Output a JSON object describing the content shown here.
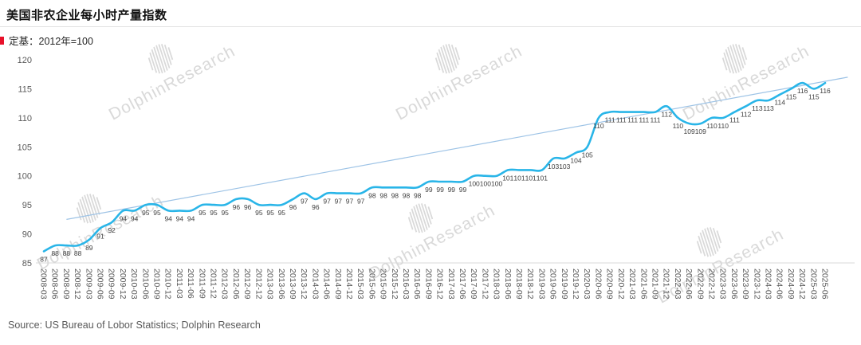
{
  "header": {
    "title": "美国非农企业每小时产量指数",
    "subtitle": "定基：2012年=100"
  },
  "footer": {
    "source": "Source: US Bureau of Lobor Statistics; Dolphin Research"
  },
  "watermark": {
    "text": "DolphinResearch",
    "icon": "dolphin-hatched-globe-icon"
  },
  "colors": {
    "series_line": "#29b5e8",
    "trend_line": "#9dc3e6",
    "subtitle_marker": "#e8112a",
    "axis_text": "#595959",
    "data_label_text": "#404040",
    "axis_line": "#d9d9d9",
    "watermark": "#d9d9d9"
  },
  "chart_data": {
    "type": "line",
    "title": "美国非农企业每小时产量指数",
    "base_note": "2012年=100",
    "x": [
      "2008-03",
      "2008-06",
      "2008-09",
      "2008-12",
      "2009-03",
      "2009-06",
      "2009-09",
      "2009-12",
      "2010-03",
      "2010-06",
      "2010-09",
      "2010-12",
      "2011-03",
      "2011-06",
      "2011-09",
      "2011-12",
      "2012-03",
      "2012-06",
      "2012-09",
      "2012-12",
      "2013-03",
      "2013-06",
      "2013-09",
      "2013-12",
      "2014-03",
      "2014-06",
      "2014-09",
      "2014-12",
      "2015-03",
      "2015-06",
      "2015-09",
      "2015-12",
      "2016-03",
      "2016-06",
      "2016-09",
      "2016-12",
      "2017-03",
      "2017-06",
      "2017-09",
      "2017-12",
      "2018-03",
      "2018-06",
      "2018-09",
      "2018-12",
      "2019-03",
      "2019-06",
      "2019-09",
      "2019-12",
      "2020-03",
      "2020-06",
      "2020-09",
      "2020-12",
      "2021-03",
      "2021-06",
      "2021-09",
      "2021-12",
      "2022-03",
      "2022-06",
      "2022-09",
      "2022-12",
      "2023-03",
      "2023-06",
      "2023-09",
      "2023-12",
      "2024-03",
      "2024-06",
      "2024-09",
      "2024-12",
      "2025-03",
      "2025-06"
    ],
    "series": [
      {
        "name": "美国非农企业每小时产量指数",
        "values": [
          87,
          88,
          88,
          88,
          89,
          91,
          92,
          94,
          94,
          95,
          95,
          94,
          94,
          94,
          95,
          95,
          95,
          96,
          96,
          95,
          95,
          95,
          96,
          97,
          96,
          97,
          97,
          97,
          97,
          98,
          98,
          98,
          98,
          98,
          99,
          99,
          99,
          99,
          100,
          100,
          100,
          101,
          101,
          101,
          101,
          103,
          103,
          104,
          105,
          110,
          111,
          111,
          111,
          111,
          111,
          112,
          110,
          109,
          109,
          110,
          110,
          111,
          112,
          113,
          113,
          114,
          115,
          116,
          115,
          116
        ]
      }
    ],
    "trendline": {
      "from_index": 2,
      "from_value": 92.5,
      "to_index": 71,
      "to_value": 117
    },
    "ylim": [
      85,
      120
    ],
    "yticks": [
      85,
      90,
      95,
      100,
      105,
      110,
      115,
      120
    ],
    "grid": false,
    "legend": "none",
    "data_labels": true,
    "xlabel": "",
    "ylabel": ""
  }
}
